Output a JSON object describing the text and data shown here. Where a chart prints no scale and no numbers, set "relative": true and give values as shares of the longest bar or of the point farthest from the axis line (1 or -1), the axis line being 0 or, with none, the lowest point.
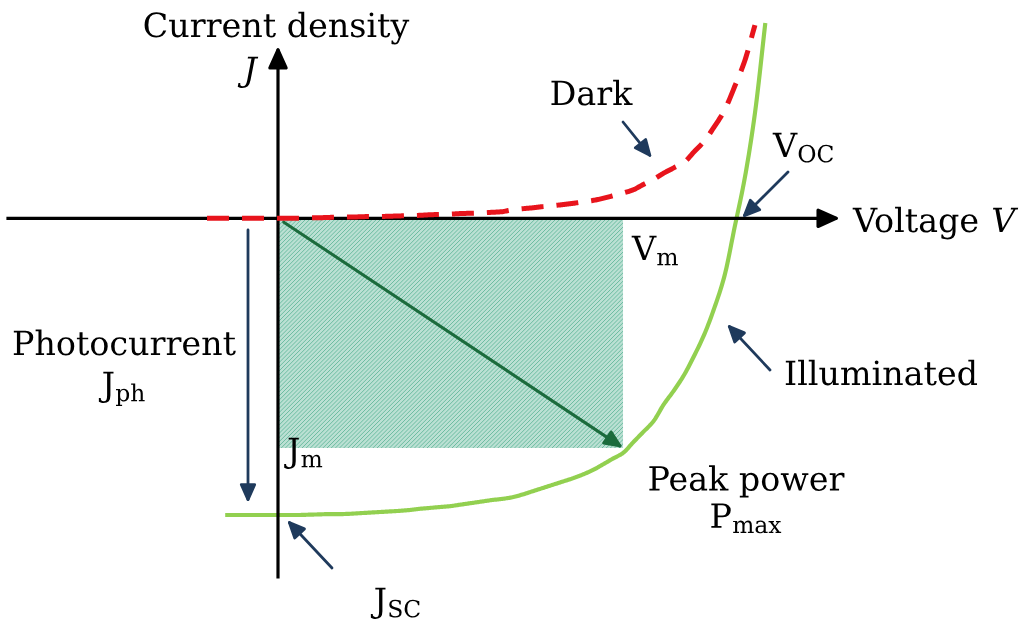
{
  "chart_data": {
    "type": "line",
    "relative": true,
    "xlabel": "Voltage V",
    "ylabel": "Current density J",
    "categories": [
      null,
      null,
      null,
      null,
      null,
      null,
      null,
      null,
      null,
      null,
      null,
      null,
      null,
      null,
      null,
      null,
      null,
      null,
      null,
      null,
      null,
      null,
      null,
      null,
      null,
      null,
      null,
      null,
      null,
      null,
      null,
      null,
      null,
      null,
      null,
      null,
      null,
      null,
      null,
      null,
      null,
      null,
      null,
      null,
      null,
      null,
      null,
      null,
      null,
      null,
      null,
      null,
      null,
      null,
      null,
      null
    ],
    "series": [
      {
        "name": "Dark",
        "line_style": "dashed",
        "color": "#e8141c",
        "values": [
          0,
          0,
          0,
          0,
          0,
          0,
          0,
          0,
          0,
          0,
          0.002,
          0.002,
          0.003,
          0.004,
          0.004,
          0.005,
          0.006,
          0.006,
          0.007,
          0.008,
          0.009,
          0.01,
          0.012,
          0.013,
          0.014,
          0.016,
          0.017,
          0.018,
          0.02,
          0.022,
          0.028,
          0.032,
          0.035,
          0.039,
          0.042,
          0.046,
          0.05,
          0.055,
          0.06,
          0.067,
          0.076,
          0.085,
          0.096,
          0.114,
          0.131,
          0.152,
          0.17,
          0.188,
          0.224,
          0.26,
          0.309,
          0.364,
          0.444,
          0.531,
          0.651,
          null
        ]
      },
      {
        "name": "Illuminated",
        "line_style": "solid",
        "color": "#92d050",
        "values": [
          null,
          null,
          -1.0,
          -1.0,
          -1.0,
          -1.0,
          -1.0,
          -1.0,
          -1.0,
          -1.0,
          -0.999,
          -0.998,
          -0.997,
          -0.997,
          -0.996,
          -0.994,
          -0.992,
          -0.99,
          -0.988,
          -0.986,
          -0.983,
          -0.979,
          -0.976,
          -0.973,
          -0.97,
          -0.965,
          -0.96,
          -0.955,
          -0.95,
          -0.946,
          -0.941,
          -0.932,
          -0.921,
          -0.91,
          -0.899,
          -0.888,
          -0.877,
          -0.864,
          -0.849,
          -0.83,
          -0.81,
          -0.791,
          -0.755,
          -0.72,
          -0.684,
          -0.628,
          -0.581,
          -0.529,
          -0.464,
          -0.392,
          -0.302,
          -0.194,
          -0.03,
          0.136,
          0.354,
          0.651
        ]
      },
      {
        "type": "area",
        "color": "#5cb596",
        "values": [
          null,
          null,
          null,
          null,
          null,
          null,
          null,
          -0.774,
          -0.774,
          -0.774,
          -0.774,
          -0.774,
          -0.774,
          -0.774,
          -0.774,
          -0.774,
          -0.774,
          -0.774,
          -0.774,
          -0.774,
          -0.774,
          -0.774,
          -0.774,
          -0.774,
          -0.774,
          -0.774,
          -0.774,
          -0.774,
          -0.774,
          -0.774,
          -0.774,
          -0.774,
          -0.774,
          -0.774,
          -0.774,
          -0.774,
          -0.774,
          -0.774,
          -0.774,
          -0.774,
          -0.774,
          -0.774,
          null,
          null,
          null,
          null,
          null,
          null,
          null,
          null,
          null,
          null,
          null,
          null,
          null,
          null
        ]
      }
    ],
    "annotations": [
      "V$_{OC}$",
      "V$_{m}$",
      "Photocurrent\nJ$_{ph}$",
      "J$_{m}$",
      "Peak power\nP$_{max}$",
      "J$_{SC}$"
    ]
  }
}
